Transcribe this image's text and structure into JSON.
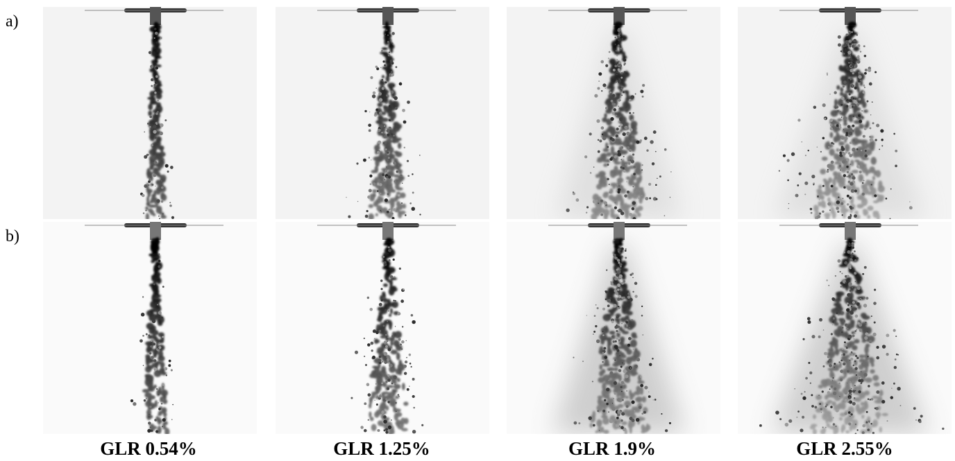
{
  "rows": [
    {
      "label": "a)"
    },
    {
      "label": "b)"
    }
  ],
  "columns": [
    "GLR 0.54%",
    "GLR 1.25%",
    "GLR 1.9%",
    "GLR 2.55%"
  ]
}
